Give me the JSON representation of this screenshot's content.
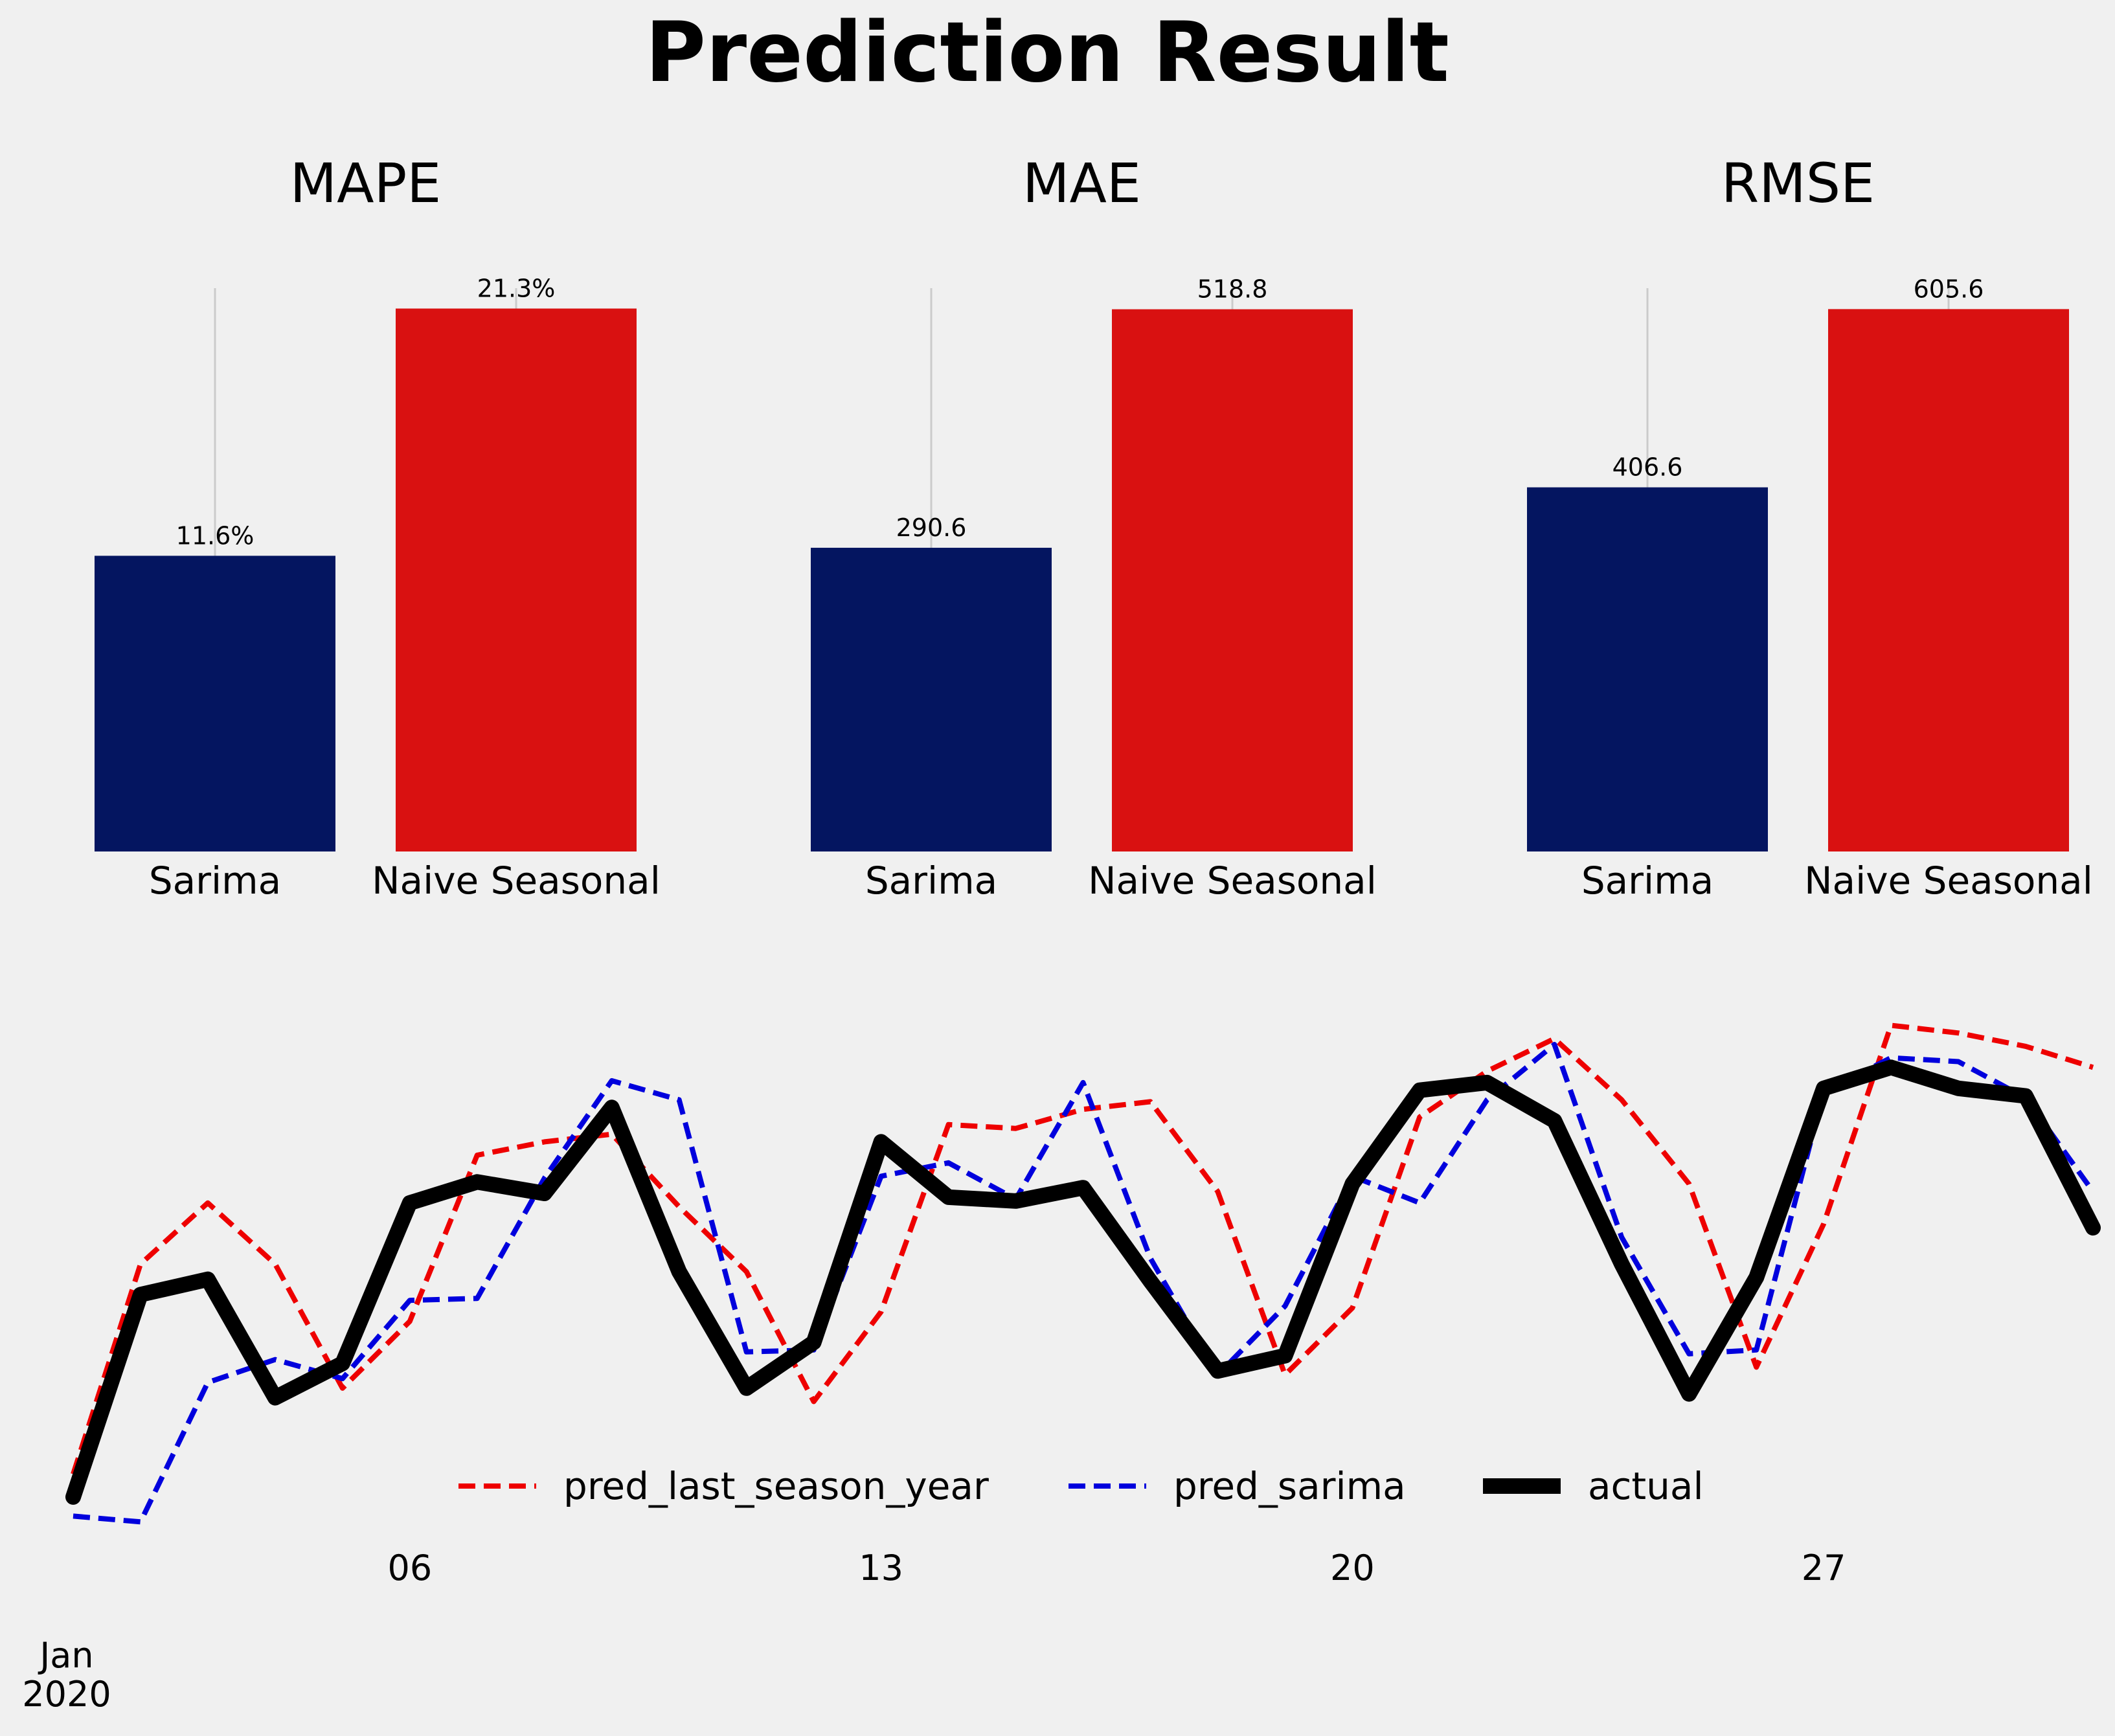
{
  "title": "Prediction Result",
  "colors": {
    "background": "#f0f0f0",
    "sarima_bar": "#041560",
    "naive_bar": "#d91111",
    "pred_last_season_year": "#ee0000",
    "pred_sarima": "#0000dd",
    "actual": "#000000",
    "grid": "#cbcbcb"
  },
  "chart_data": [
    {
      "type": "bar",
      "title": "MAPE",
      "categories": [
        "Sarima",
        "Naive Seasonal"
      ],
      "values": [
        11.6,
        21.3
      ],
      "value_labels": [
        "11.6%",
        "21.3%"
      ],
      "ylim": [
        0,
        22.1
      ],
      "grid": true
    },
    {
      "type": "bar",
      "title": "MAE",
      "categories": [
        "Sarima",
        "Naive Seasonal"
      ],
      "values": [
        290.6,
        518.8
      ],
      "value_labels": [
        "290.6",
        "518.8"
      ],
      "ylim": [
        0,
        539
      ],
      "grid": true
    },
    {
      "type": "bar",
      "title": "RMSE",
      "categories": [
        "Sarima",
        "Naive Seasonal"
      ],
      "values": [
        406.6,
        605.6
      ],
      "value_labels": [
        "406.6",
        "605.6"
      ],
      "ylim": [
        0,
        629
      ],
      "grid": true
    },
    {
      "type": "line",
      "x": [
        "2020-01-01",
        "2020-01-02",
        "2020-01-03",
        "2020-01-04",
        "2020-01-05",
        "2020-01-06",
        "2020-01-07",
        "2020-01-08",
        "2020-01-09",
        "2020-01-10",
        "2020-01-11",
        "2020-01-12",
        "2020-01-13",
        "2020-01-14",
        "2020-01-15",
        "2020-01-16",
        "2020-01-17",
        "2020-01-18",
        "2020-01-19",
        "2020-01-20",
        "2020-01-21",
        "2020-01-22",
        "2020-01-23",
        "2020-01-24",
        "2020-01-25",
        "2020-01-26",
        "2020-01-27",
        "2020-01-28",
        "2020-01-29",
        "2020-01-30",
        "2020-01-31"
      ],
      "x_ticks": [
        {
          "date": "2020-01-06",
          "label": "06"
        },
        {
          "date": "2020-01-13",
          "label": "13"
        },
        {
          "date": "2020-01-20",
          "label": "20"
        },
        {
          "date": "2020-01-27",
          "label": "27"
        }
      ],
      "x_corner_label": [
        "Jan",
        "2020"
      ],
      "ylim": [
        1600,
        4550
      ],
      "grid": false,
      "legend_position": "bottom-center",
      "series": [
        {
          "name": "pred_last_season_year",
          "style": "dashed",
          "values": [
            1900,
            3000,
            3320,
            3000,
            2350,
            2700,
            3570,
            3640,
            3680,
            3300,
            2960,
            2280,
            2750,
            3730,
            3710,
            3810,
            3850,
            3380,
            2420,
            2770,
            3770,
            4010,
            4180,
            3860,
            3420,
            2460,
            3210,
            4250,
            4210,
            4140,
            4030
          ]
        },
        {
          "name": "pred_sarima",
          "style": "dashed",
          "values": [
            1680,
            1650,
            2380,
            2500,
            2400,
            2810,
            2820,
            3450,
            3960,
            3860,
            2540,
            2550,
            3460,
            3530,
            3340,
            3950,
            3030,
            2420,
            2780,
            3460,
            3320,
            3860,
            4150,
            3140,
            2530,
            2550,
            3900,
            4080,
            4060,
            3870,
            3380
          ]
        },
        {
          "name": "actual",
          "style": "solid",
          "values": [
            1780,
            2840,
            2920,
            2300,
            2480,
            3320,
            3430,
            3370,
            3820,
            2960,
            2350,
            2590,
            3640,
            3350,
            3330,
            3400,
            2910,
            2440,
            2520,
            3420,
            3910,
            3950,
            3750,
            3000,
            2320,
            2930,
            3920,
            4030,
            3920,
            3880,
            3190
          ]
        }
      ]
    }
  ]
}
